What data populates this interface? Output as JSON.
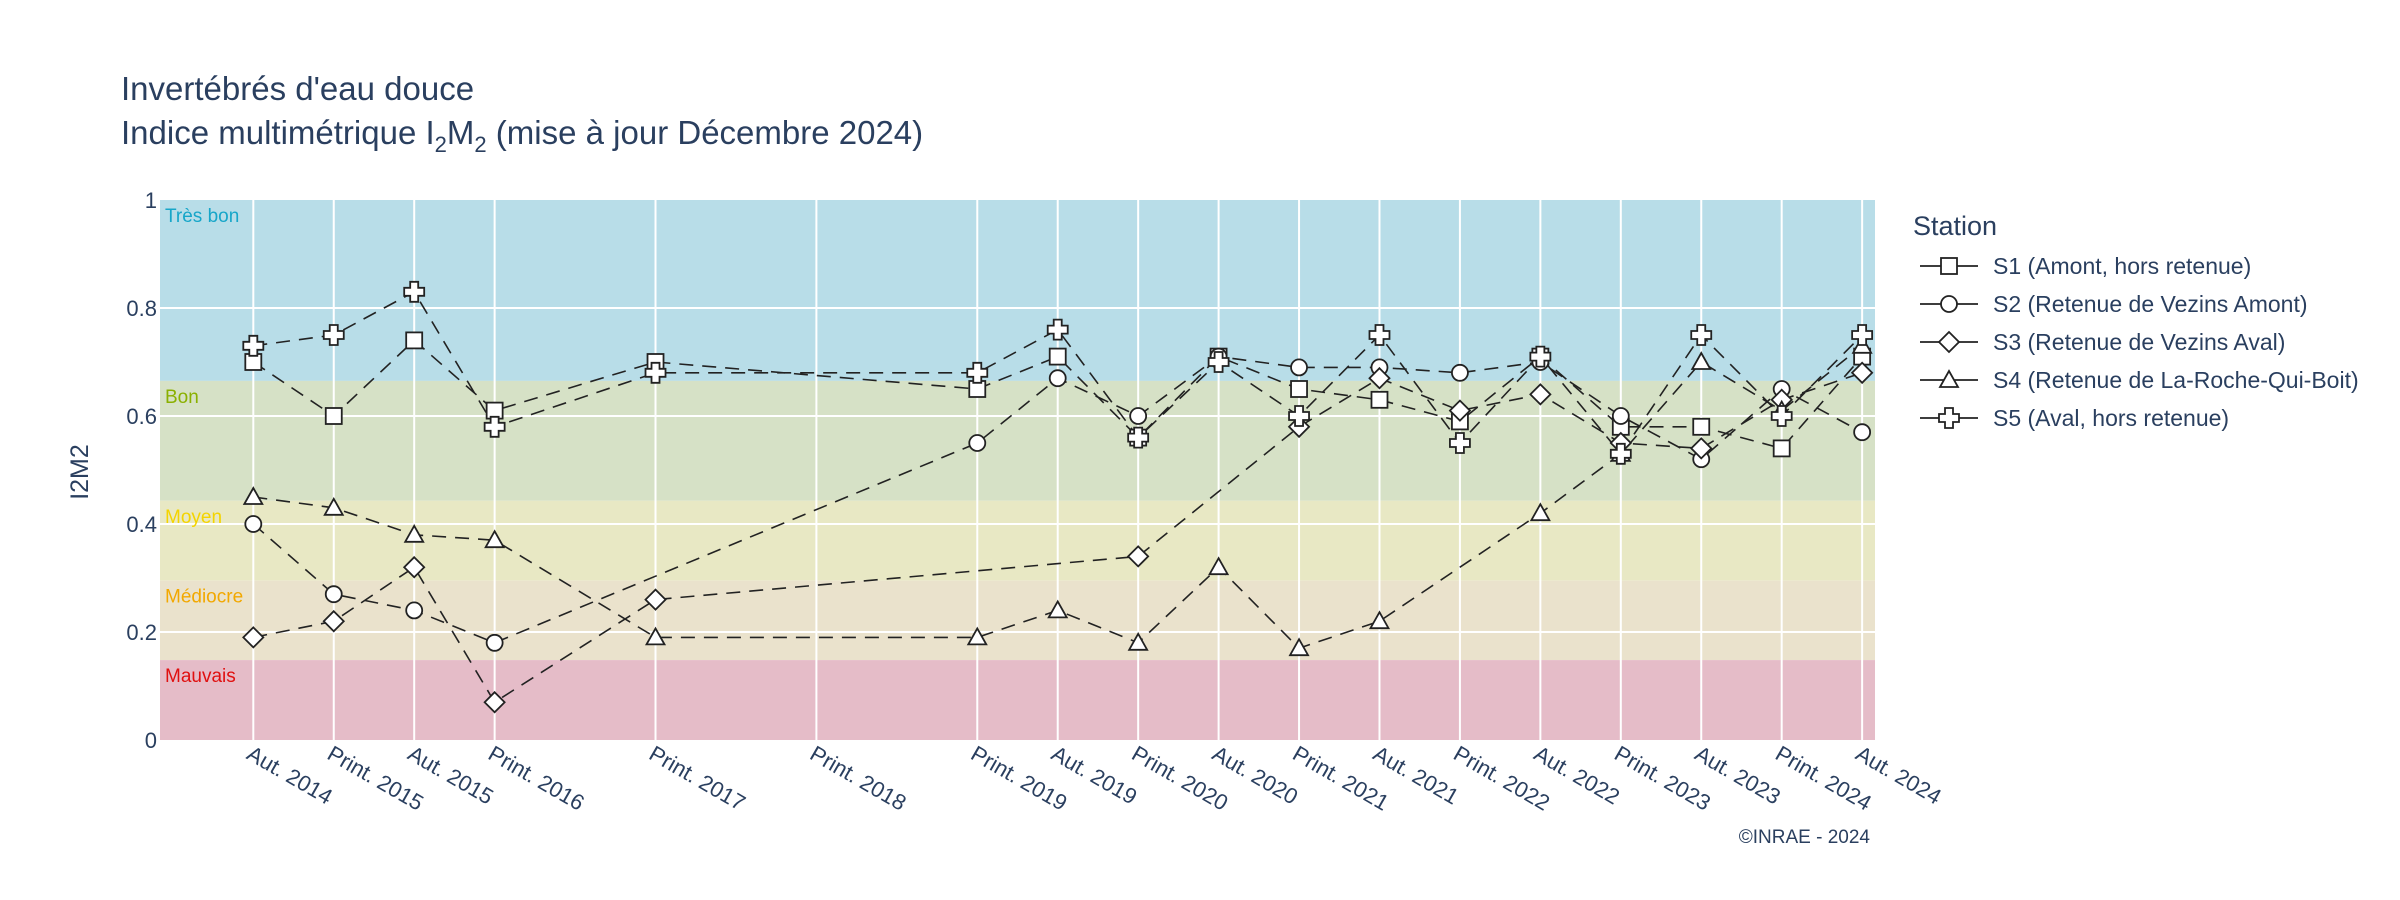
{
  "chart_data": {
    "type": "line",
    "title": "Invertébrés d'eau douce",
    "subtitle": {
      "prefix": "Indice multimétrique I",
      "sub1": "2",
      "mid": "M",
      "sub2": "2",
      "suffix": " (mise à jour Décembre 2024)"
    },
    "ylabel": "I2M2",
    "xlabel": "",
    "ylim": [
      0,
      1
    ],
    "yticks": [
      0,
      0.2,
      0.4,
      0.6,
      0.8,
      1
    ],
    "ytick_labels": [
      "0",
      "0.2",
      "0.4",
      "0.6",
      "0.8",
      "1"
    ],
    "categories": [
      "Aut. 2014",
      "Print. 2015",
      "Aut. 2015",
      "Print. 2016",
      "Print. 2017",
      "Print. 2018",
      "Print. 2019",
      "Aut. 2019",
      "Print. 2020",
      "Aut. 2020",
      "Print. 2021",
      "Aut. 2021",
      "Print. 2022",
      "Aut. 2022",
      "Print. 2023",
      "Aut. 2023",
      "Print. 2024",
      "Aut. 2024"
    ],
    "x_positions": [
      2014.75,
      2015.25,
      2015.75,
      2016.25,
      2017.25,
      2018.25,
      2019.25,
      2019.75,
      2020.25,
      2020.75,
      2021.25,
      2021.75,
      2022.25,
      2022.75,
      2023.25,
      2023.75,
      2024.25,
      2024.75
    ],
    "xlim": [
      2014.17,
      2024.83
    ],
    "grid": true,
    "bands": [
      {
        "label": "Très bon",
        "from": 0.665,
        "to": 1.0,
        "color": "#b8dde8",
        "label_color": "#17a6c9"
      },
      {
        "label": "Bon",
        "from": 0.443,
        "to": 0.665,
        "color": "#d6e1c6",
        "label_color": "#8ab000"
      },
      {
        "label": "Moyen",
        "from": 0.295,
        "to": 0.443,
        "color": "#e8e8c4",
        "label_color": "#f4d400"
      },
      {
        "label": "Médiocre",
        "from": 0.148,
        "to": 0.295,
        "color": "#eae2cc",
        "label_color": "#f2a800"
      },
      {
        "label": "Mauvais",
        "from": 0.0,
        "to": 0.148,
        "color": "#e5bcc8",
        "label_color": "#e01010"
      }
    ],
    "legend": {
      "title": "Station",
      "placement": "top-right, outside plot"
    },
    "series": [
      {
        "name": "S1 (Amont, hors retenue)",
        "marker": "square",
        "x": [
          2014.75,
          2015.25,
          2015.75,
          2016.25,
          2017.25,
          2019.25,
          2019.75,
          2020.25,
          2020.75,
          2021.25,
          2021.75,
          2022.25,
          2022.75,
          2023.25,
          2023.75,
          2024.25,
          2024.75
        ],
        "y": [
          0.7,
          0.6,
          0.74,
          0.61,
          0.7,
          0.65,
          0.71,
          0.56,
          0.71,
          0.65,
          0.63,
          0.59,
          0.71,
          0.58,
          0.58,
          0.54,
          0.71
        ]
      },
      {
        "name": "S2 (Retenue de Vezins Amont)",
        "marker": "circle",
        "x": [
          2014.75,
          2015.25,
          2015.75,
          2016.25,
          2019.25,
          2019.75,
          2020.25,
          2020.75,
          2021.25,
          2021.75,
          2022.25,
          2022.75,
          2023.25,
          2023.75,
          2024.25,
          2024.75
        ],
        "y": [
          0.4,
          0.27,
          0.24,
          0.18,
          0.55,
          0.67,
          0.6,
          0.71,
          0.69,
          0.69,
          0.68,
          0.7,
          0.6,
          0.52,
          0.65,
          0.57
        ]
      },
      {
        "name": "S3 (Retenue de Vezins Aval)",
        "marker": "diamond",
        "x": [
          2014.75,
          2015.25,
          2015.75,
          2016.25,
          2017.25,
          2020.25,
          2021.25,
          2021.75,
          2022.25,
          2022.75,
          2023.25,
          2023.75,
          2024.25,
          2024.75
        ],
        "y": [
          0.19,
          0.22,
          0.32,
          0.07,
          0.26,
          0.34,
          0.58,
          0.67,
          0.61,
          0.64,
          0.55,
          0.54,
          0.63,
          0.68
        ]
      },
      {
        "name": "S4 (Retenue de La-Roche-Qui-Boit)",
        "marker": "triangle-up",
        "x": [
          2014.75,
          2015.25,
          2015.75,
          2016.25,
          2017.25,
          2019.25,
          2019.75,
          2020.25,
          2020.75,
          2021.25,
          2021.75,
          2022.75,
          2023.25,
          2023.75,
          2024.25,
          2024.75
        ],
        "y": [
          0.45,
          0.43,
          0.38,
          0.37,
          0.19,
          0.19,
          0.24,
          0.18,
          0.32,
          0.17,
          0.22,
          0.42,
          0.53,
          0.7,
          0.61,
          0.73
        ]
      },
      {
        "name": "S5 (Aval, hors retenue)",
        "marker": "cross",
        "x": [
          2014.75,
          2015.25,
          2015.75,
          2016.25,
          2017.25,
          2019.25,
          2019.75,
          2020.25,
          2020.75,
          2021.25,
          2021.75,
          2022.25,
          2022.75,
          2023.25,
          2023.75,
          2024.25,
          2024.75
        ],
        "y": [
          0.73,
          0.75,
          0.83,
          0.58,
          0.68,
          0.68,
          0.76,
          0.56,
          0.7,
          0.6,
          0.75,
          0.55,
          0.71,
          0.53,
          0.75,
          0.6,
          0.75
        ]
      }
    ],
    "credit": "©INRAE - 2024",
    "colors": {
      "line": "#222222",
      "marker_fill": "#ffffff",
      "grid": "#ffffff",
      "text": "#2a3f5f"
    }
  }
}
